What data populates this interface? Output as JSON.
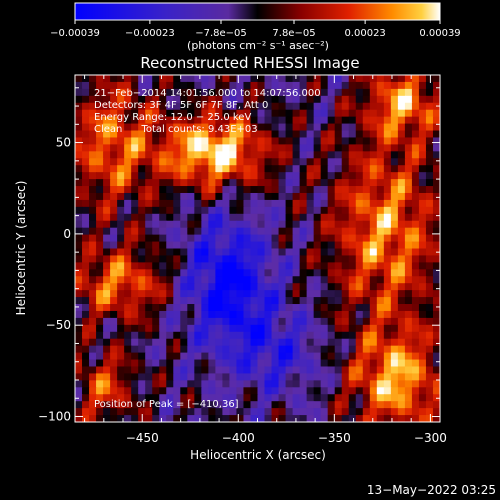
{
  "chart_data": {
    "type": "heatmap",
    "title": "Reconstructed RHESSI Image",
    "xlabel": "Heliocentric X (arcsec)",
    "ylabel": "Heliocentric Y (arcsec)",
    "xlim": [
      -485,
      -295
    ],
    "ylim": [
      -103,
      87
    ],
    "xticks": [
      -450,
      -400,
      -350,
      -300
    ],
    "xtick_labels": [
      "−450",
      "−400",
      "−350",
      "−300"
    ],
    "yticks": [
      -100,
      -50,
      0,
      50
    ],
    "ytick_labels": [
      "−100",
      "−50",
      "0",
      "50"
    ],
    "colorbar": {
      "vmin": -0.00039,
      "vmax": 0.00039,
      "ticks": [
        -0.00039,
        -0.00023,
        -7.8e-05,
        7.8e-05,
        0.00023,
        0.00039
      ],
      "tick_labels": [
        "−0.00039",
        "−0.00023",
        "−7.8e−05",
        "7.8e−05",
        "0.00023",
        "0.00039"
      ],
      "unit_label": "(photons cm⁻² s⁻¹ asec⁻²)"
    },
    "annotations": [
      "21−Feb−2014 14:01:56.000 to 14:07:56.000",
      "Detectors: 3F 4F 5F 6F 7F 8F, Att 0",
      "Energy Range: 12.0 − 25.0 keV",
      "Clean      Total counts: 9.43E+03"
    ],
    "peak": {
      "label": "Position of Peak = [−410,36]",
      "x": -410,
      "y": 36
    },
    "grid": false
  },
  "footer": {
    "timestamp": "13−May−2022 03:25"
  }
}
